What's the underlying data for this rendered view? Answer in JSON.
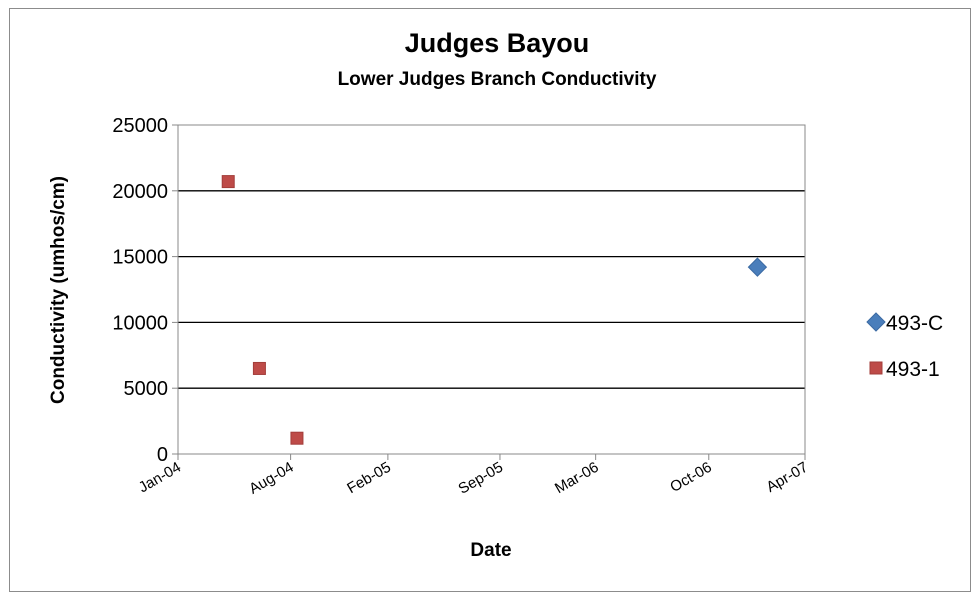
{
  "chart_data": {
    "type": "scatter",
    "title": "Judges Bayou",
    "subtitle": "Lower Judges Branch Conductivity",
    "xlabel": "Date",
    "ylabel": "Conductivity (umhos/cm)",
    "x_axis_type": "date",
    "xlim": [
      "2004-01-01",
      "2007-04-01"
    ],
    "ylim": [
      0,
      25000
    ],
    "x_ticks": [
      {
        "date": "2004-01-01",
        "label": "Jan-04"
      },
      {
        "date": "2004-08-01",
        "label": "Aug-04"
      },
      {
        "date": "2005-02-01",
        "label": "Feb-05"
      },
      {
        "date": "2005-09-01",
        "label": "Sep-05"
      },
      {
        "date": "2006-03-01",
        "label": "Mar-06"
      },
      {
        "date": "2006-10-01",
        "label": "Oct-06"
      },
      {
        "date": "2007-04-01",
        "label": "Apr-07"
      }
    ],
    "y_ticks": [
      0,
      5000,
      10000,
      15000,
      20000,
      25000
    ],
    "grid": "horizontal major gridlines",
    "legend_position": "right",
    "series": [
      {
        "name": "493-C",
        "marker": "diamond",
        "color": "#4a7ebb",
        "points": [
          {
            "x": "2007-01-01",
            "y": 14200
          }
        ]
      },
      {
        "name": "493-1",
        "marker": "square",
        "color": "#be4b48",
        "points": [
          {
            "x": "2004-04-05",
            "y": 20700
          },
          {
            "x": "2004-06-03",
            "y": 6500
          },
          {
            "x": "2004-08-13",
            "y": 1200
          }
        ]
      }
    ]
  }
}
